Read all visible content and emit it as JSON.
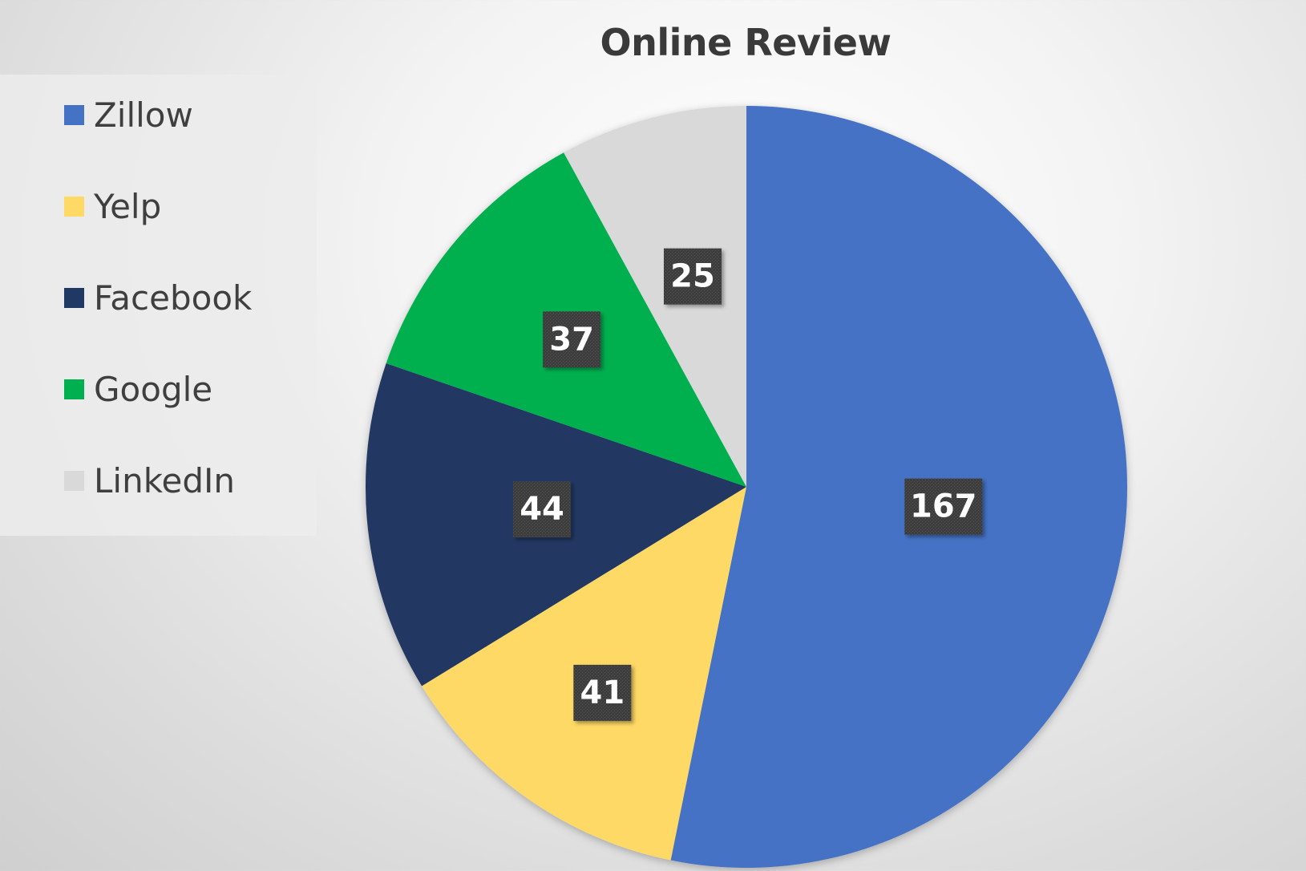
{
  "chart_data": {
    "type": "pie",
    "title": "Online Review",
    "categories": [
      "Zillow",
      "Yelp",
      "Facebook",
      "Google",
      "LinkedIn"
    ],
    "values": [
      167,
      41,
      44,
      37,
      25
    ],
    "colors": [
      "#4472C4",
      "#FFD966",
      "#203864",
      "#00B050",
      "#D9D9D9"
    ],
    "legend_position": "left",
    "start_angle": "12 o'clock",
    "direction": "clockwise",
    "data_labels": true
  },
  "colors": {
    "data_label_background": "#404040",
    "data_label_text": "#FFFFFF",
    "title_text": "#3A3A3A",
    "legend_text": "#3F3F3F"
  }
}
